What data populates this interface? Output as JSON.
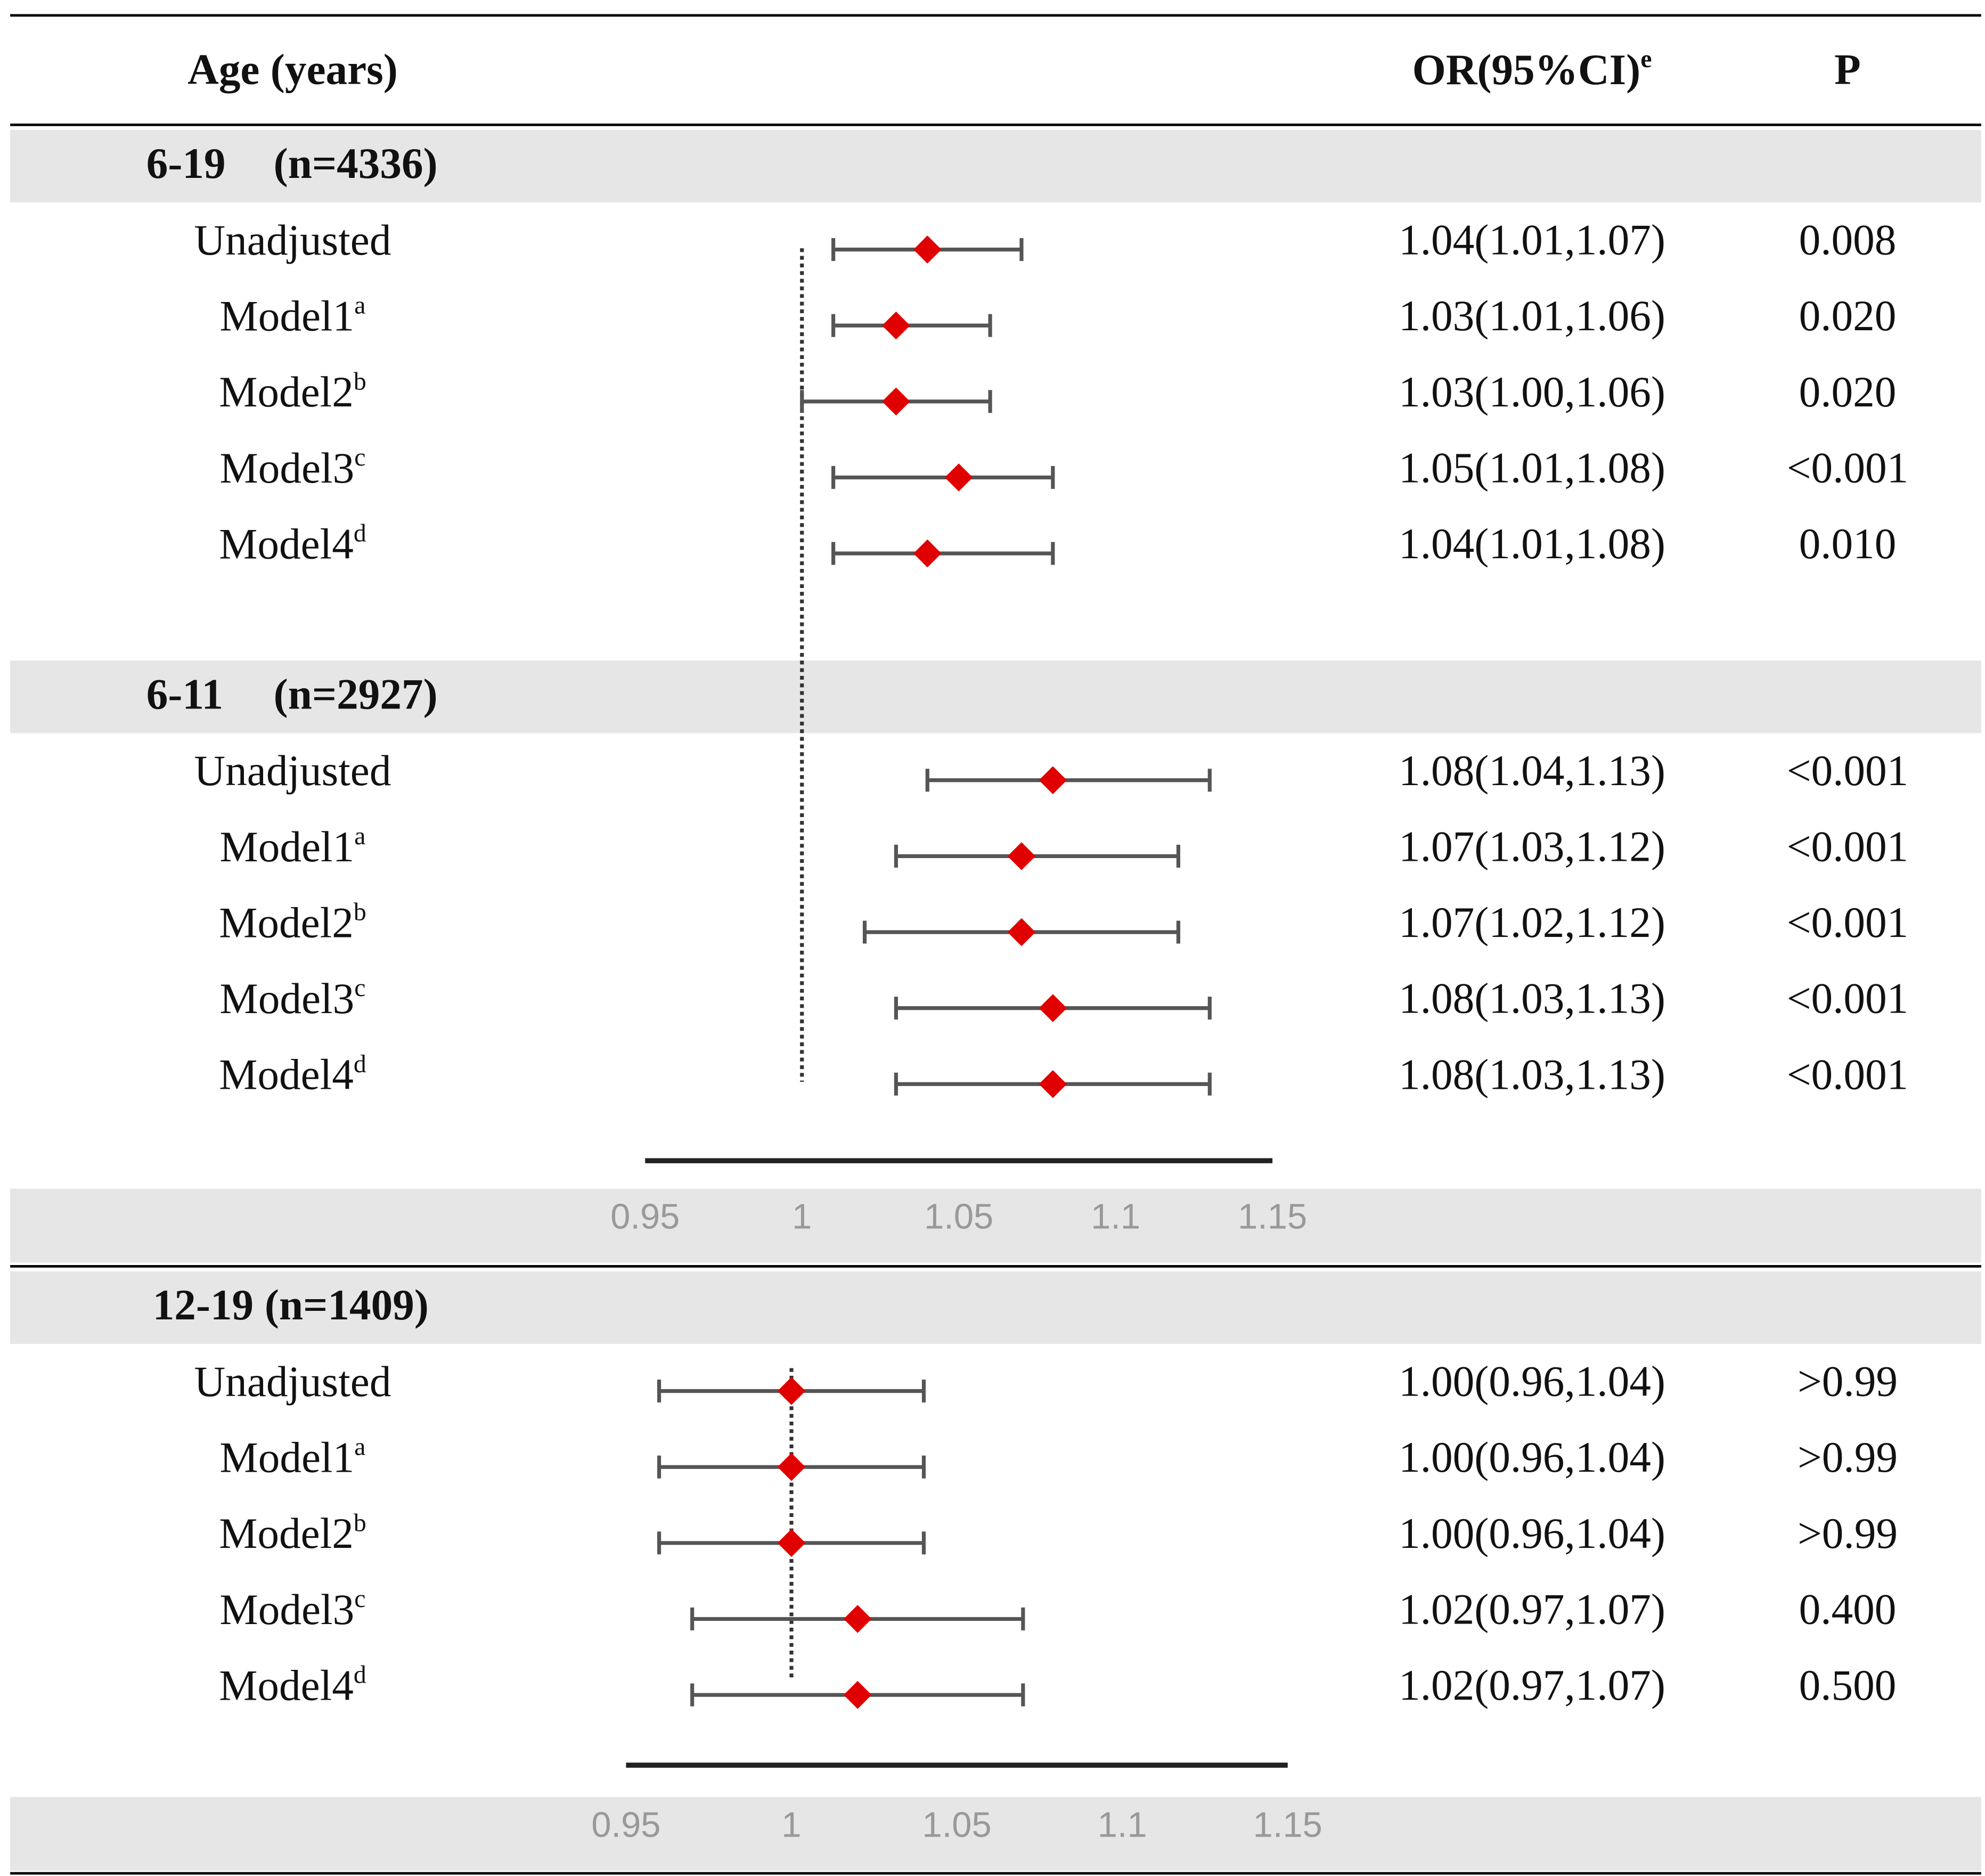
{
  "chart_data": {
    "type": "forest",
    "header": {
      "label": "Age (years)",
      "ci": "OR(95%CI)",
      "ci_sup": "e",
      "p": "P"
    },
    "reference": 1,
    "panels": [
      {
        "xlim": [
          0.95,
          1.15
        ],
        "xticks": [
          0.95,
          1,
          1.05,
          1.1,
          1.15
        ],
        "groups": [
          {
            "title": "6-19",
            "n": "(n=4336)",
            "rows": [
              {
                "label": "Unadjusted",
                "or": 1.04,
                "lo": 1.01,
                "hi": 1.07,
                "ci_label": "1.04(1.01,1.07)",
                "p": "0.008"
              },
              {
                "label": "Model1",
                "sup": "a",
                "or": 1.03,
                "lo": 1.01,
                "hi": 1.06,
                "ci_label": "1.03(1.01,1.06)",
                "p": "0.020"
              },
              {
                "label": "Model2",
                "sup": "b",
                "or": 1.03,
                "lo": 1.0,
                "hi": 1.06,
                "ci_label": "1.03(1.00,1.06)",
                "p": "0.020"
              },
              {
                "label": "Model3",
                "sup": "c",
                "or": 1.05,
                "lo": 1.01,
                "hi": 1.08,
                "ci_label": "1.05(1.01,1.08)",
                "p": "<0.001"
              },
              {
                "label": "Model4",
                "sup": "d",
                "or": 1.04,
                "lo": 1.01,
                "hi": 1.08,
                "ci_label": "1.04(1.01,1.08)",
                "p": "0.010"
              }
            ]
          },
          {
            "title": "6-11",
            "n": "(n=2927)",
            "rows": [
              {
                "label": "Unadjusted",
                "or": 1.08,
                "lo": 1.04,
                "hi": 1.13,
                "ci_label": "1.08(1.04,1.13)",
                "p": "<0.001"
              },
              {
                "label": "Model1",
                "sup": "a",
                "or": 1.07,
                "lo": 1.03,
                "hi": 1.12,
                "ci_label": "1.07(1.03,1.12)",
                "p": "<0.001"
              },
              {
                "label": "Model2",
                "sup": "b",
                "or": 1.07,
                "lo": 1.02,
                "hi": 1.12,
                "ci_label": "1.07(1.02,1.12)",
                "p": "<0.001"
              },
              {
                "label": "Model3",
                "sup": "c",
                "or": 1.08,
                "lo": 1.03,
                "hi": 1.13,
                "ci_label": "1.08(1.03,1.13)",
                "p": "<0.001"
              },
              {
                "label": "Model4",
                "sup": "d",
                "or": 1.08,
                "lo": 1.03,
                "hi": 1.13,
                "ci_label": "1.08(1.03,1.13)",
                "p": "<0.001"
              }
            ]
          }
        ]
      },
      {
        "xlim": [
          0.95,
          1.15
        ],
        "xticks": [
          0.95,
          1,
          1.05,
          1.1,
          1.15
        ],
        "groups": [
          {
            "title": "12-19",
            "n": "(n=1409)",
            "rows": [
              {
                "label": "Unadjusted",
                "or": 1.0,
                "lo": 0.96,
                "hi": 1.04,
                "ci_label": "1.00(0.96,1.04)",
                "p": ">0.99"
              },
              {
                "label": "Model1",
                "sup": "a",
                "or": 1.0,
                "lo": 0.96,
                "hi": 1.04,
                "ci_label": "1.00(0.96,1.04)",
                "p": ">0.99"
              },
              {
                "label": "Model2",
                "sup": "b",
                "or": 1.0,
                "lo": 0.96,
                "hi": 1.04,
                "ci_label": "1.00(0.96,1.04)",
                "p": ">0.99"
              },
              {
                "label": "Model3",
                "sup": "c",
                "or": 1.02,
                "lo": 0.97,
                "hi": 1.07,
                "ci_label": "1.02(0.97,1.07)",
                "p": "0.400"
              },
              {
                "label": "Model4",
                "sup": "d",
                "or": 1.02,
                "lo": 0.97,
                "hi": 1.07,
                "ci_label": "1.02(0.97,1.07)",
                "p": "0.500"
              }
            ]
          }
        ]
      }
    ]
  }
}
